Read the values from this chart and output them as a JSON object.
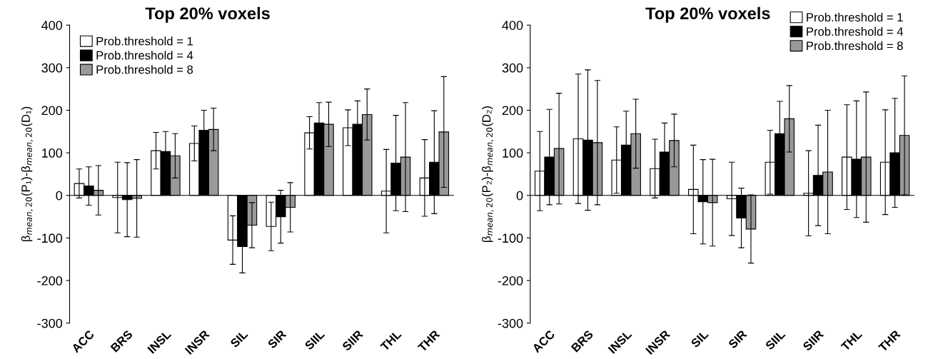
{
  "chart_data": [
    {
      "type": "bar",
      "title": "Top 20% voxels",
      "ylabel": "β$_{mean,20}$(P₁)-β$_{mean,20}$(D₁)",
      "categories": [
        "ACC",
        "BRS",
        "INSL",
        "INSR",
        "SIL",
        "SIR",
        "SIIL",
        "SIIR",
        "THL",
        "THR"
      ],
      "series": [
        {
          "name": "Prob.threshold = 1",
          "color": "#ffffff",
          "values": [
            28,
            -5,
            105,
            122,
            -105,
            -73,
            147,
            159,
            10,
            41
          ],
          "errors": [
            34,
            83,
            43,
            41,
            57,
            57,
            38,
            42,
            98,
            90
          ]
        },
        {
          "name": "Prob.threshold = 4",
          "color": "#000000",
          "values": [
            22,
            -10,
            103,
            153,
            -120,
            -50,
            170,
            167,
            76,
            78
          ],
          "errors": [
            45,
            87,
            47,
            47,
            62,
            62,
            48,
            55,
            112,
            121
          ]
        },
        {
          "name": "Prob.threshold = 8",
          "color": "#999999",
          "values": [
            12,
            -7,
            93,
            155,
            -70,
            -28,
            167,
            190,
            90,
            149
          ],
          "errors": [
            58,
            91,
            52,
            50,
            53,
            58,
            52,
            60,
            128,
            130
          ]
        }
      ],
      "ylim": [
        -300,
        400
      ],
      "yticks": [
        -300,
        -200,
        -100,
        0,
        100,
        200,
        300,
        400
      ],
      "legend": "top left"
    },
    {
      "type": "bar",
      "title": "Top 20% voxels",
      "ylabel": "β$_{mean,20}$(P₂)-β$_{mean,20}$(D₂)",
      "categories": [
        "ACC",
        "BRS",
        "INSL",
        "INSR",
        "SIL",
        "SIR",
        "SIIL",
        "SIIR",
        "THL",
        "THR"
      ],
      "series": [
        {
          "name": "Prob.threshold = 1",
          "color": "#ffffff",
          "values": [
            57,
            133,
            83,
            63,
            14,
            -8,
            78,
            5,
            90,
            78
          ],
          "errors": [
            93,
            152,
            78,
            69,
            104,
            86,
            75,
            100,
            123,
            123
          ]
        },
        {
          "name": "Prob.threshold = 4",
          "color": "#000000",
          "values": [
            90,
            130,
            118,
            102,
            -15,
            -53,
            145,
            47,
            85,
            100
          ],
          "errors": [
            112,
            165,
            80,
            68,
            99,
            70,
            76,
            118,
            137,
            128
          ]
        },
        {
          "name": "Prob.threshold = 8",
          "color": "#999999",
          "values": [
            110,
            124,
            145,
            129,
            -17,
            -79,
            180,
            55,
            90,
            141
          ],
          "errors": [
            130,
            146,
            81,
            62,
            102,
            80,
            78,
            145,
            153,
            140
          ]
        }
      ],
      "ylim": [
        -300,
        400
      ],
      "yticks": [
        -300,
        -200,
        -100,
        0,
        100,
        200,
        300,
        400
      ],
      "legend": "top right"
    }
  ]
}
